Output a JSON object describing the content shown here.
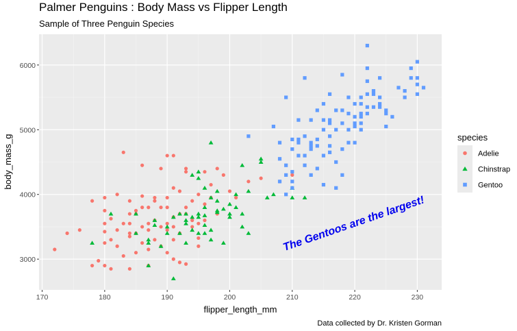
{
  "chart_data": {
    "type": "scatter",
    "title": "Palmer Penguins : Body Mass vs Flipper Length",
    "subtitle": "Sample of Three Penguin Species",
    "caption": "Data collected by Dr. Kristen Gorman",
    "xlabel": "flipper_length_mm",
    "ylabel": "body_mass_g",
    "xlim": [
      169.5,
      233.9
    ],
    "ylim": [
      2525,
      6475
    ],
    "x_ticks": [
      170,
      180,
      190,
      200,
      210,
      220,
      230
    ],
    "y_ticks": [
      3000,
      4000,
      5000,
      6000
    ],
    "grid": true,
    "legend": {
      "title": "species",
      "position": "right"
    },
    "annotation": {
      "text": "The Gentoos are the largest!",
      "x": 220,
      "y": 3500,
      "color": "#0000ee"
    },
    "series": [
      {
        "name": "Adelie",
        "color": "#f8766d",
        "shape": "circle",
        "points": [
          [
            172,
            3150
          ],
          [
            174,
            3400
          ],
          [
            176,
            3450
          ],
          [
            178,
            3900
          ],
          [
            178,
            2900
          ],
          [
            179,
            2975
          ],
          [
            180,
            3950
          ],
          [
            180,
            3750
          ],
          [
            180,
            3550
          ],
          [
            180,
            3250
          ],
          [
            180,
            3425
          ],
          [
            180,
            2900
          ],
          [
            181,
            3625
          ],
          [
            181,
            3300
          ],
          [
            181,
            2850
          ],
          [
            182,
            3450
          ],
          [
            182,
            3200
          ],
          [
            183,
            4650
          ],
          [
            183,
            3550
          ],
          [
            183,
            3050
          ],
          [
            184,
            3550
          ],
          [
            184,
            3350
          ],
          [
            184,
            3900
          ],
          [
            184,
            3400
          ],
          [
            184,
            2850
          ],
          [
            185,
            3700
          ],
          [
            185,
            3400
          ],
          [
            185,
            3100
          ],
          [
            186,
            4450
          ],
          [
            186,
            3800
          ],
          [
            186,
            3250
          ],
          [
            186,
            3500
          ],
          [
            187,
            3800
          ],
          [
            187,
            3450
          ],
          [
            187,
            3150
          ],
          [
            187,
            2900
          ],
          [
            188,
            3900
          ],
          [
            188,
            3600
          ],
          [
            188,
            3300
          ],
          [
            189,
            4400
          ],
          [
            189,
            3500
          ],
          [
            189,
            3200
          ],
          [
            190,
            4600
          ],
          [
            190,
            3800
          ],
          [
            190,
            3950
          ],
          [
            190,
            3450
          ],
          [
            190,
            3100
          ],
          [
            191,
            4600
          ],
          [
            191,
            3650
          ],
          [
            191,
            3300
          ],
          [
            191,
            3000
          ],
          [
            191,
            3500
          ],
          [
            192,
            4050
          ],
          [
            192,
            3700
          ],
          [
            192,
            3400
          ],
          [
            193,
            3800
          ],
          [
            193,
            4350
          ],
          [
            193,
            3700
          ],
          [
            193,
            2925
          ],
          [
            194,
            3900
          ],
          [
            194,
            3600
          ],
          [
            195,
            4000
          ],
          [
            195,
            3550
          ],
          [
            195,
            3325
          ],
          [
            196,
            4350
          ],
          [
            196,
            3850
          ],
          [
            196,
            3600
          ],
          [
            197,
            4150
          ],
          [
            197,
            3950
          ],
          [
            198,
            4400
          ],
          [
            198,
            3700
          ],
          [
            199,
            4300
          ],
          [
            200,
            4050
          ],
          [
            201,
            3950
          ],
          [
            203,
            4200
          ],
          [
            205,
            4250
          ],
          [
            208,
            4200
          ],
          [
            210,
            4300
          ],
          [
            193,
            4400
          ],
          [
            188,
            3950
          ],
          [
            185,
            3750
          ],
          [
            182,
            4000
          ],
          [
            186,
            3975
          ],
          [
            190,
            3550
          ],
          [
            189,
            3800
          ],
          [
            184,
            3700
          ],
          [
            194,
            3500
          ],
          [
            195,
            3200
          ],
          [
            192,
            2950
          ],
          [
            187,
            3550
          ],
          [
            191,
            4100
          ]
        ]
      },
      {
        "name": "Chinstrap",
        "color": "#00ba38",
        "shape": "triangle",
        "points": [
          [
            178,
            3250
          ],
          [
            181,
            3700
          ],
          [
            185,
            3400
          ],
          [
            185,
            3700
          ],
          [
            187,
            3300
          ],
          [
            187,
            3250
          ],
          [
            187,
            2900
          ],
          [
            188,
            3525
          ],
          [
            188,
            3600
          ],
          [
            189,
            3200
          ],
          [
            190,
            3400
          ],
          [
            190,
            3500
          ],
          [
            191,
            2700
          ],
          [
            191,
            3650
          ],
          [
            192,
            3400
          ],
          [
            192,
            3700
          ],
          [
            193,
            3550
          ],
          [
            193,
            3600
          ],
          [
            193,
            3250
          ],
          [
            194,
            3650
          ],
          [
            194,
            3450
          ],
          [
            195,
            3400
          ],
          [
            195,
            3650
          ],
          [
            195,
            4350
          ],
          [
            195,
            3700
          ],
          [
            196,
            3800
          ],
          [
            196,
            4100
          ],
          [
            196,
            3525
          ],
          [
            196,
            3400
          ],
          [
            197,
            3950
          ],
          [
            197,
            3450
          ],
          [
            197,
            3300
          ],
          [
            198,
            3750
          ],
          [
            198,
            3725
          ],
          [
            199,
            3775
          ],
          [
            199,
            3250
          ],
          [
            200,
            3650
          ],
          [
            200,
            3850
          ],
          [
            201,
            4000
          ],
          [
            201,
            3800
          ],
          [
            202,
            4450
          ],
          [
            202,
            3500
          ],
          [
            203,
            3400
          ],
          [
            203,
            4050
          ],
          [
            205,
            4550
          ],
          [
            205,
            4500
          ],
          [
            206,
            3950
          ],
          [
            207,
            4000
          ],
          [
            210,
            3950
          ],
          [
            210,
            4100
          ],
          [
            212,
            3950
          ],
          [
            195,
            4250
          ],
          [
            198,
            4050
          ],
          [
            194,
            4300
          ],
          [
            200,
            3700
          ],
          [
            197,
            4800
          ],
          [
            202,
            3700
          ],
          [
            198,
            3900
          ],
          [
            193,
            3700
          ],
          [
            196,
            3675
          ]
        ]
      },
      {
        "name": "Gentoo",
        "color": "#619cff",
        "shape": "square",
        "points": [
          [
            203,
            4900
          ],
          [
            207,
            5050
          ],
          [
            208,
            4550
          ],
          [
            208,
            4800
          ],
          [
            208,
            4200
          ],
          [
            209,
            4450
          ],
          [
            209,
            5500
          ],
          [
            209,
            4300
          ],
          [
            209,
            4000
          ],
          [
            210,
            4850
          ],
          [
            210,
            4700
          ],
          [
            210,
            4350
          ],
          [
            210,
            4200
          ],
          [
            210,
            4100
          ],
          [
            211,
            4600
          ],
          [
            211,
            4800
          ],
          [
            211,
            4850
          ],
          [
            212,
            4450
          ],
          [
            212,
            4600
          ],
          [
            212,
            4900
          ],
          [
            213,
            4700
          ],
          [
            213,
            4300
          ],
          [
            213,
            4750
          ],
          [
            213,
            4800
          ],
          [
            214,
            5300
          ],
          [
            214,
            4400
          ],
          [
            214,
            4750
          ],
          [
            214,
            4850
          ],
          [
            215,
            5000
          ],
          [
            215,
            5150
          ],
          [
            215,
            4150
          ],
          [
            215,
            4600
          ],
          [
            215,
            5400
          ],
          [
            216,
            4900
          ],
          [
            216,
            5100
          ],
          [
            216,
            4650
          ],
          [
            216,
            4750
          ],
          [
            217,
            4100
          ],
          [
            217,
            5000
          ],
          [
            217,
            5300
          ],
          [
            217,
            4500
          ],
          [
            218,
            4300
          ],
          [
            218,
            5100
          ],
          [
            218,
            4700
          ],
          [
            218,
            5300
          ],
          [
            219,
            4800
          ],
          [
            219,
            5250
          ],
          [
            219,
            5000
          ],
          [
            220,
            5400
          ],
          [
            220,
            5200
          ],
          [
            220,
            5100
          ],
          [
            220,
            4800
          ],
          [
            220,
            5050
          ],
          [
            221,
            5250
          ],
          [
            221,
            5400
          ],
          [
            221,
            5200
          ],
          [
            221,
            5500
          ],
          [
            221,
            5000
          ],
          [
            222,
            6300
          ],
          [
            222,
            5250
          ],
          [
            222,
            5750
          ],
          [
            222,
            5550
          ],
          [
            222,
            5350
          ],
          [
            223,
            5350
          ],
          [
            223,
            5550
          ],
          [
            223,
            5600
          ],
          [
            224,
            5800
          ],
          [
            224,
            5350
          ],
          [
            224,
            5500
          ],
          [
            225,
            5050
          ],
          [
            225,
            5250
          ],
          [
            226,
            5200
          ],
          [
            228,
            5600
          ],
          [
            228,
            5500
          ],
          [
            229,
            5950
          ],
          [
            229,
            5800
          ],
          [
            230,
            6050
          ],
          [
            230,
            5800
          ],
          [
            230,
            5700
          ],
          [
            230,
            5550
          ],
          [
            231,
            5650
          ],
          [
            216,
            5550
          ],
          [
            218,
            5850
          ],
          [
            222,
            5950
          ],
          [
            225,
            5300
          ],
          [
            213,
            5150
          ],
          [
            211,
            5150
          ],
          [
            216,
            5150
          ],
          [
            219,
            5500
          ],
          [
            227,
            5650
          ],
          [
            212,
            5800
          ],
          [
            221,
            5100
          ],
          [
            224,
            5400
          ]
        ]
      }
    ]
  }
}
